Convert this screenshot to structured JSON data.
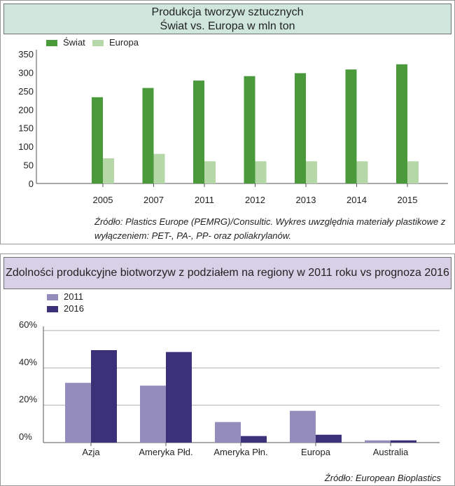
{
  "chart_data": [
    {
      "type": "bar",
      "title": "Produkcja tworzyw sztucznych",
      "subtitle": "Świat vs. Europa w mln ton",
      "categories": [
        "2005",
        "2007",
        "2011",
        "2012",
        "2013",
        "2014",
        "2015"
      ],
      "series": [
        {
          "name": "Świat",
          "color": "#4a9a3c",
          "values": [
            233,
            258,
            278,
            290,
            298,
            308,
            322
          ]
        },
        {
          "name": "Europa",
          "color": "#b6d7a8",
          "values": [
            68,
            80,
            60,
            60,
            60,
            60,
            60
          ]
        }
      ],
      "yticks": [
        "350",
        "300",
        "250",
        "200",
        "150",
        "100",
        "50",
        "0"
      ],
      "ylim": [
        0,
        350
      ],
      "grid": false,
      "legend_position": "top-left",
      "source": "Źródło: Plastics Europe (PEMRG)/Consultic. Wykres uwzględnia materiały plastikowe z wyłączeniem: PET-, PA-, PP- oraz poliakrylanów."
    },
    {
      "type": "bar",
      "title": "Zdolności produkcyjne biotworzyw z podziałem na regiony w 2011 roku vs prognoza 2016",
      "categories": [
        "Azja",
        "Ameryka Płd.",
        "Ameryka Płn.",
        "Europa",
        "Australia"
      ],
      "series": [
        {
          "name": "2011",
          "color": "#948cba",
          "values": [
            32,
            30.5,
            11,
            17,
            1.2
          ]
        },
        {
          "name": "2016",
          "color": "#3b3178",
          "values": [
            49.5,
            48.5,
            3.5,
            4.2,
            1.2
          ]
        }
      ],
      "yticks": [
        "60%",
        "40%",
        "20%",
        "0%"
      ],
      "ylim": [
        0,
        60
      ],
      "grid": true,
      "legend_position": "top-left",
      "source": "Źródło: European Bioplastics"
    }
  ]
}
